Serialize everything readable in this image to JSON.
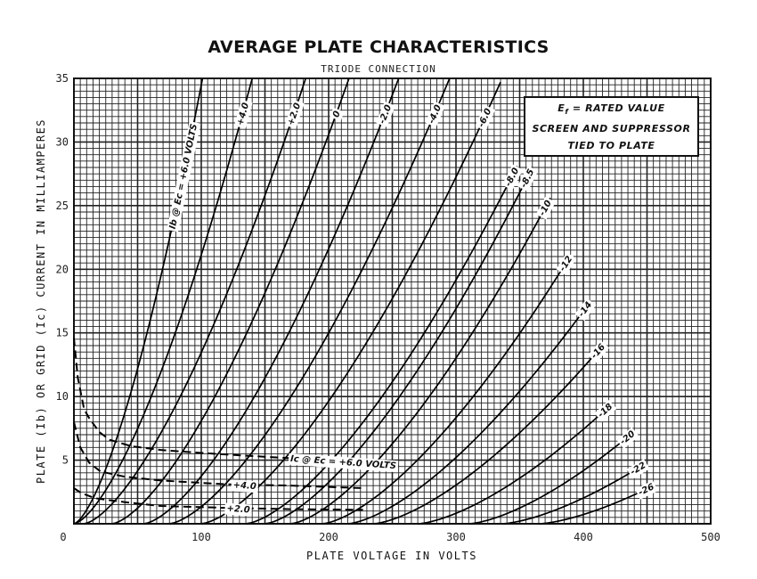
{
  "chart_data": {
    "type": "line",
    "title": "AVERAGE PLATE CHARACTERISTICS",
    "subtitle": "TRIODE CONNECTION",
    "xlabel": "PLATE VOLTAGE IN VOLTS",
    "ylabel": "PLATE (Ib) OR GRID (Ic) CURRENT IN MILLIAMPERES",
    "xlim": [
      0,
      500
    ],
    "ylim": [
      0,
      35
    ],
    "xticks": [
      "0",
      "100",
      "200",
      "300",
      "400",
      "500"
    ],
    "yticks": [
      "5",
      "10",
      "15",
      "20",
      "25",
      "30",
      "35"
    ],
    "grid": true,
    "legend": {
      "symbol": "E",
      "sub": "f",
      "line1": " = RATED VALUE",
      "line2": "SCREEN AND SUPPRESSOR",
      "line3": "TIED TO PLATE"
    },
    "plate_current_series": [
      {
        "name": "Ib @ Ec = +6.0 VOLTS",
        "v_start": 0,
        "v_end": 101,
        "i_end": 35
      },
      {
        "name": "+4.0",
        "v_start": 0,
        "v_end": 140,
        "i_end": 35
      },
      {
        "name": "+2.0",
        "v_start": 8,
        "v_end": 182,
        "i_end": 35
      },
      {
        "name": "0",
        "v_start": 30,
        "v_end": 216,
        "i_end": 35
      },
      {
        "name": "-2.0",
        "v_start": 55,
        "v_end": 255,
        "i_end": 35
      },
      {
        "name": "-4.0",
        "v_start": 75,
        "v_end": 295,
        "i_end": 35
      },
      {
        "name": "-6.0",
        "v_start": 100,
        "v_end": 335,
        "i_end": 34.7
      },
      {
        "name": "-8.0",
        "v_start": 135,
        "v_end": 348,
        "i_end": 28.1
      },
      {
        "name": "-8.5",
        "v_start": 150,
        "v_end": 360,
        "i_end": 28
      },
      {
        "name": "-10",
        "v_start": 170,
        "v_end": 374,
        "i_end": 25.6
      },
      {
        "name": "-12",
        "v_start": 195,
        "v_end": 390,
        "i_end": 21.1
      },
      {
        "name": "-14",
        "v_start": 215,
        "v_end": 405,
        "i_end": 17.4
      },
      {
        "name": "-16",
        "v_start": 235,
        "v_end": 415,
        "i_end": 14
      },
      {
        "name": "-18",
        "v_start": 270,
        "v_end": 420,
        "i_end": 9.2
      },
      {
        "name": "-20",
        "v_start": 310,
        "v_end": 437,
        "i_end": 7.0
      },
      {
        "name": "-22",
        "v_start": 336,
        "v_end": 445,
        "i_end": 4.5
      },
      {
        "name": "-26",
        "v_start": 365,
        "v_end": 451,
        "i_end": 2.8
      }
    ],
    "grid_current_series": [
      {
        "name": "Ic @ Ec = +6.0 VOLTS",
        "label_v": 170,
        "points": [
          [
            0,
            14.6
          ],
          [
            3,
            11.5
          ],
          [
            8,
            9.0
          ],
          [
            12,
            8.3
          ],
          [
            20,
            7.2
          ],
          [
            28,
            6.6
          ],
          [
            45,
            6.1
          ],
          [
            68,
            5.8
          ],
          [
            110,
            5.5
          ],
          [
            161,
            5.2
          ],
          [
            224,
            4.9
          ]
        ]
      },
      {
        "name": "+4.0",
        "label_v": 125,
        "points": [
          [
            0,
            8.0
          ],
          [
            5,
            6.0
          ],
          [
            12,
            4.8
          ],
          [
            21,
            4.1
          ],
          [
            40,
            3.7
          ],
          [
            68,
            3.4
          ],
          [
            120,
            3.1
          ],
          [
            170,
            3.0
          ],
          [
            227,
            2.8
          ]
        ]
      },
      {
        "name": "+2.0",
        "label_v": 120,
        "points": [
          [
            0,
            2.8
          ],
          [
            6,
            2.4
          ],
          [
            17,
            2.0
          ],
          [
            40,
            1.7
          ],
          [
            68,
            1.4
          ],
          [
            120,
            1.25
          ],
          [
            170,
            1.15
          ],
          [
            227,
            1.1
          ]
        ]
      }
    ]
  }
}
